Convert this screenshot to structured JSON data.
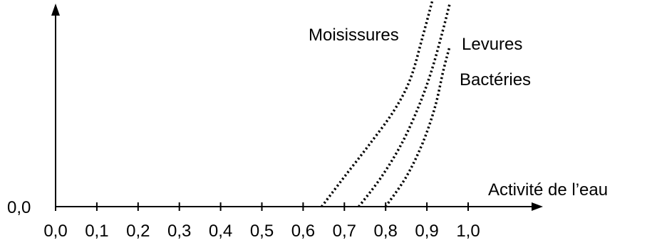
{
  "chart_data": {
    "type": "line",
    "title": "",
    "xlabel": "Activité de l’eau",
    "ylabel": "",
    "y_origin_label": "0,0",
    "xlim": [
      0.0,
      1.0
    ],
    "x_ticks": [
      0.0,
      0.1,
      0.2,
      0.3,
      0.4,
      0.5,
      0.6,
      0.7,
      0.8,
      0.9,
      1.0
    ],
    "x_tick_labels": [
      "0,0",
      "0,1",
      "0,2",
      "0,3",
      "0,4",
      "0,5",
      "0,6",
      "0,7",
      "0,8",
      "0,9",
      "1,0"
    ],
    "grid": false,
    "line_style": "dotted",
    "color": "#000000",
    "series": [
      {
        "name": "Moisissures",
        "x": [
          0.645,
          0.7,
          0.76,
          0.82,
          0.86,
          0.89,
          0.915
        ],
        "y": [
          0.0,
          0.14,
          0.29,
          0.45,
          0.6,
          0.8,
          0.98
        ]
      },
      {
        "name": "Levures",
        "x": [
          0.735,
          0.79,
          0.84,
          0.88,
          0.91,
          0.935,
          0.955
        ],
        "y": [
          0.0,
          0.14,
          0.3,
          0.47,
          0.63,
          0.8,
          0.95
        ]
      },
      {
        "name": "Bactéries",
        "x": [
          0.8,
          0.85,
          0.89,
          0.92,
          0.94,
          0.955
        ],
        "y": [
          0.0,
          0.14,
          0.3,
          0.47,
          0.64,
          0.75
        ]
      }
    ]
  }
}
